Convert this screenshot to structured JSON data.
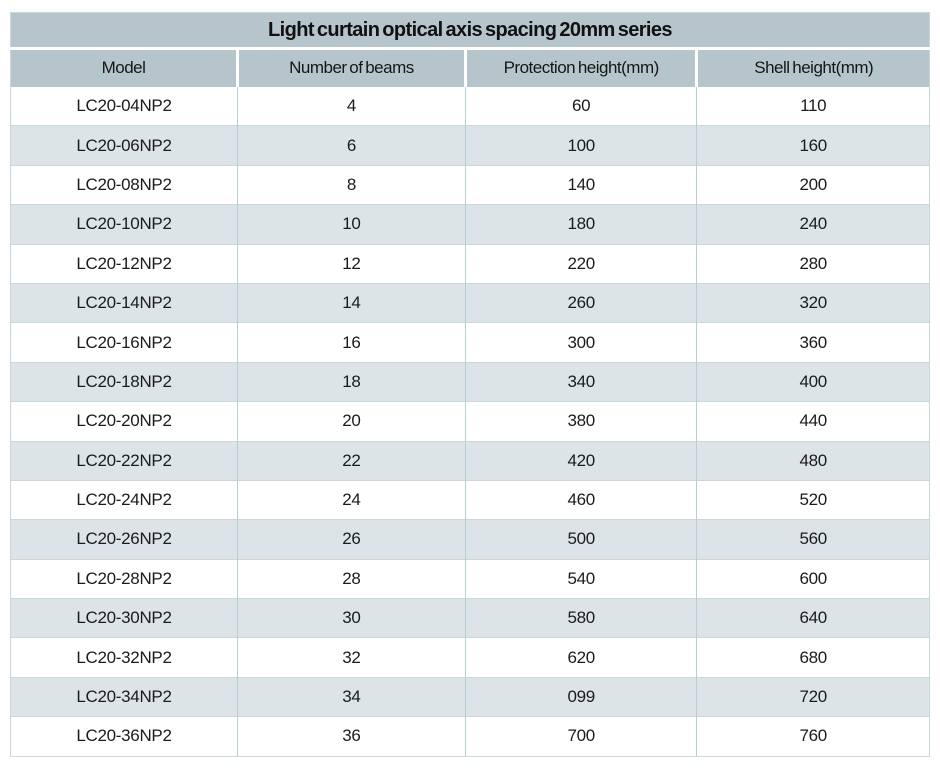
{
  "chart_data": {
    "type": "table",
    "title": "Light curtain optical axis spacing 20mm series",
    "columns": [
      "Model",
      "Number of beams",
      "Protection height(mm)",
      "Shell height(mm)"
    ],
    "rows": [
      [
        "LC20-04NP2",
        "4",
        "60",
        "110"
      ],
      [
        "LC20-06NP2",
        "6",
        "100",
        "160"
      ],
      [
        "LC20-08NP2",
        "8",
        "140",
        "200"
      ],
      [
        "LC20-10NP2",
        "10",
        "180",
        "240"
      ],
      [
        "LC20-12NP2",
        "12",
        "220",
        "280"
      ],
      [
        "LC20-14NP2",
        "14",
        "260",
        "320"
      ],
      [
        "LC20-16NP2",
        "16",
        "300",
        "360"
      ],
      [
        "LC20-18NP2",
        "18",
        "340",
        "400"
      ],
      [
        "LC20-20NP2",
        "20",
        "380",
        "440"
      ],
      [
        "LC20-22NP2",
        "22",
        "420",
        "480"
      ],
      [
        "LC20-24NP2",
        "24",
        "460",
        "520"
      ],
      [
        "LC20-26NP2",
        "26",
        "500",
        "560"
      ],
      [
        "LC20-28NP2",
        "28",
        "540",
        "600"
      ],
      [
        "LC20-30NP2",
        "30",
        "580",
        "640"
      ],
      [
        "LC20-32NP2",
        "32",
        "620",
        "680"
      ],
      [
        "LC20-34NP2",
        "34",
        "099",
        "720"
      ],
      [
        "LC20-36NP2",
        "36",
        "700",
        "760"
      ]
    ],
    "layout": {
      "legend": "none",
      "grid": "cell-borders",
      "row_striping": "alternate"
    }
  },
  "colors": {
    "header_bg": "#b6c5cc",
    "row_bg": "#ffffff",
    "row_alt_bg": "#dde4e8",
    "border": "#c9d6dc",
    "column_divider": "#b9cdd5",
    "text": "#1b1b1b",
    "page_bg": "#ffffff"
  }
}
